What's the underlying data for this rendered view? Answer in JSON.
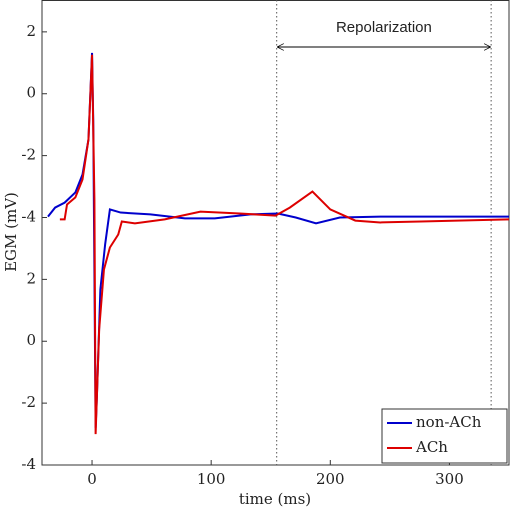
{
  "chart_data": {
    "type": "line",
    "xlabel": "time (ms)",
    "ylabel": "EGM (mV)",
    "xlim": [
      -42,
      350
    ],
    "xticks": [
      0,
      100,
      200,
      300
    ],
    "ylim": [
      -12,
      3.03
    ],
    "yticks": [
      2,
      0,
      -2,
      -4,
      {
        "value": -6,
        "label": "2"
      },
      {
        "value": -8,
        "label": "0"
      },
      {
        "value": -10,
        "label": "-2"
      },
      {
        "value": -12,
        "label": "-4"
      }
    ],
    "annotation": "Repolarization",
    "vlines": [
      155,
      335
    ],
    "legend": "lower right",
    "series": [
      {
        "name": "non-ACh",
        "color": "#0000cc",
        "x": [
          -37,
          -31,
          -23,
          -14,
          -8,
          -3,
          0,
          1,
          3,
          4,
          7,
          11,
          15,
          24,
          49,
          78,
          103,
          133,
          156,
          171,
          188,
          208,
          242,
          350
        ],
        "values": [
          -3.97,
          -3.68,
          -3.52,
          -3.19,
          -2.61,
          -1.48,
          1.32,
          -0.84,
          -10.8,
          -9.87,
          -6.32,
          -4.87,
          -3.74,
          -3.84,
          -3.9,
          -4.03,
          -4.03,
          -3.9,
          -3.87,
          -4.0,
          -4.19,
          -4.0,
          -3.97,
          -3.97
        ]
      },
      {
        "name": "ACh",
        "color": "#dd0000",
        "x": [
          -27,
          -23,
          -21,
          -14,
          -8,
          -3,
          0,
          2,
          3,
          6,
          10,
          15,
          22,
          25,
          36,
          61,
          91,
          124,
          154,
          166,
          185,
          200,
          221,
          242,
          276,
          350
        ],
        "values": [
          -4.06,
          -4.06,
          -3.58,
          -3.35,
          -2.77,
          -1.48,
          1.26,
          -3.42,
          -11.0,
          -7.61,
          -5.68,
          -4.97,
          -4.55,
          -4.13,
          -4.19,
          -4.06,
          -3.81,
          -3.87,
          -3.94,
          -3.68,
          -3.16,
          -3.74,
          -4.1,
          -4.16,
          -4.13,
          -4.06
        ]
      }
    ]
  }
}
